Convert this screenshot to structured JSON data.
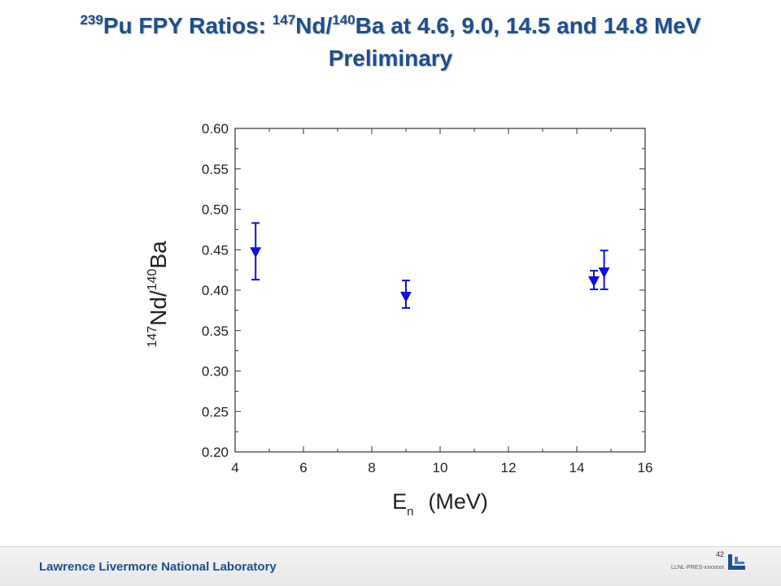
{
  "title": {
    "line1": [
      {
        "text": "239",
        "sup": true
      },
      {
        "text": "Pu FPY Ratios: ",
        "sup": false
      },
      {
        "text": "147",
        "sup": true
      },
      {
        "text": "Nd/",
        "sup": false
      },
      {
        "text": "140",
        "sup": true
      },
      {
        "text": "Ba at 4.6, 9.0, 14.5 and 14.8 MeV",
        "sup": false
      }
    ],
    "line2": "Preliminary"
  },
  "chart_data": {
    "type": "scatter",
    "x_label": {
      "main": "E",
      "sub": "n",
      "suffix": "(MeV)"
    },
    "y_label": {
      "sup1": "147",
      "main1": "Nd/",
      "sup2": "140",
      "main2": "Ba"
    },
    "xlim": [
      4,
      16
    ],
    "ylim": [
      0.2,
      0.6
    ],
    "x_ticks": [
      4,
      6,
      8,
      10,
      12,
      14,
      16
    ],
    "y_ticks": [
      "0.20",
      "0.25",
      "0.30",
      "0.35",
      "0.40",
      "0.45",
      "0.50",
      "0.55",
      "0.60"
    ],
    "marker": "down-triangle",
    "grid": false,
    "series": [
      {
        "color": "#1010e0",
        "points": [
          {
            "x": 4.6,
            "y": 0.447,
            "err_low": 0.413,
            "err_high": 0.483
          },
          {
            "x": 9.0,
            "y": 0.392,
            "err_low": 0.378,
            "err_high": 0.412
          },
          {
            "x": 14.5,
            "y": 0.411,
            "err_low": 0.401,
            "err_high": 0.424
          },
          {
            "x": 14.8,
            "y": 0.422,
            "err_low": 0.401,
            "err_high": 0.449
          }
        ]
      }
    ]
  },
  "footer": {
    "lab_name": "Lawrence Livermore National Laboratory",
    "page_number": "42",
    "doc_number": "LLNL-PRES-xxxxxxx"
  }
}
